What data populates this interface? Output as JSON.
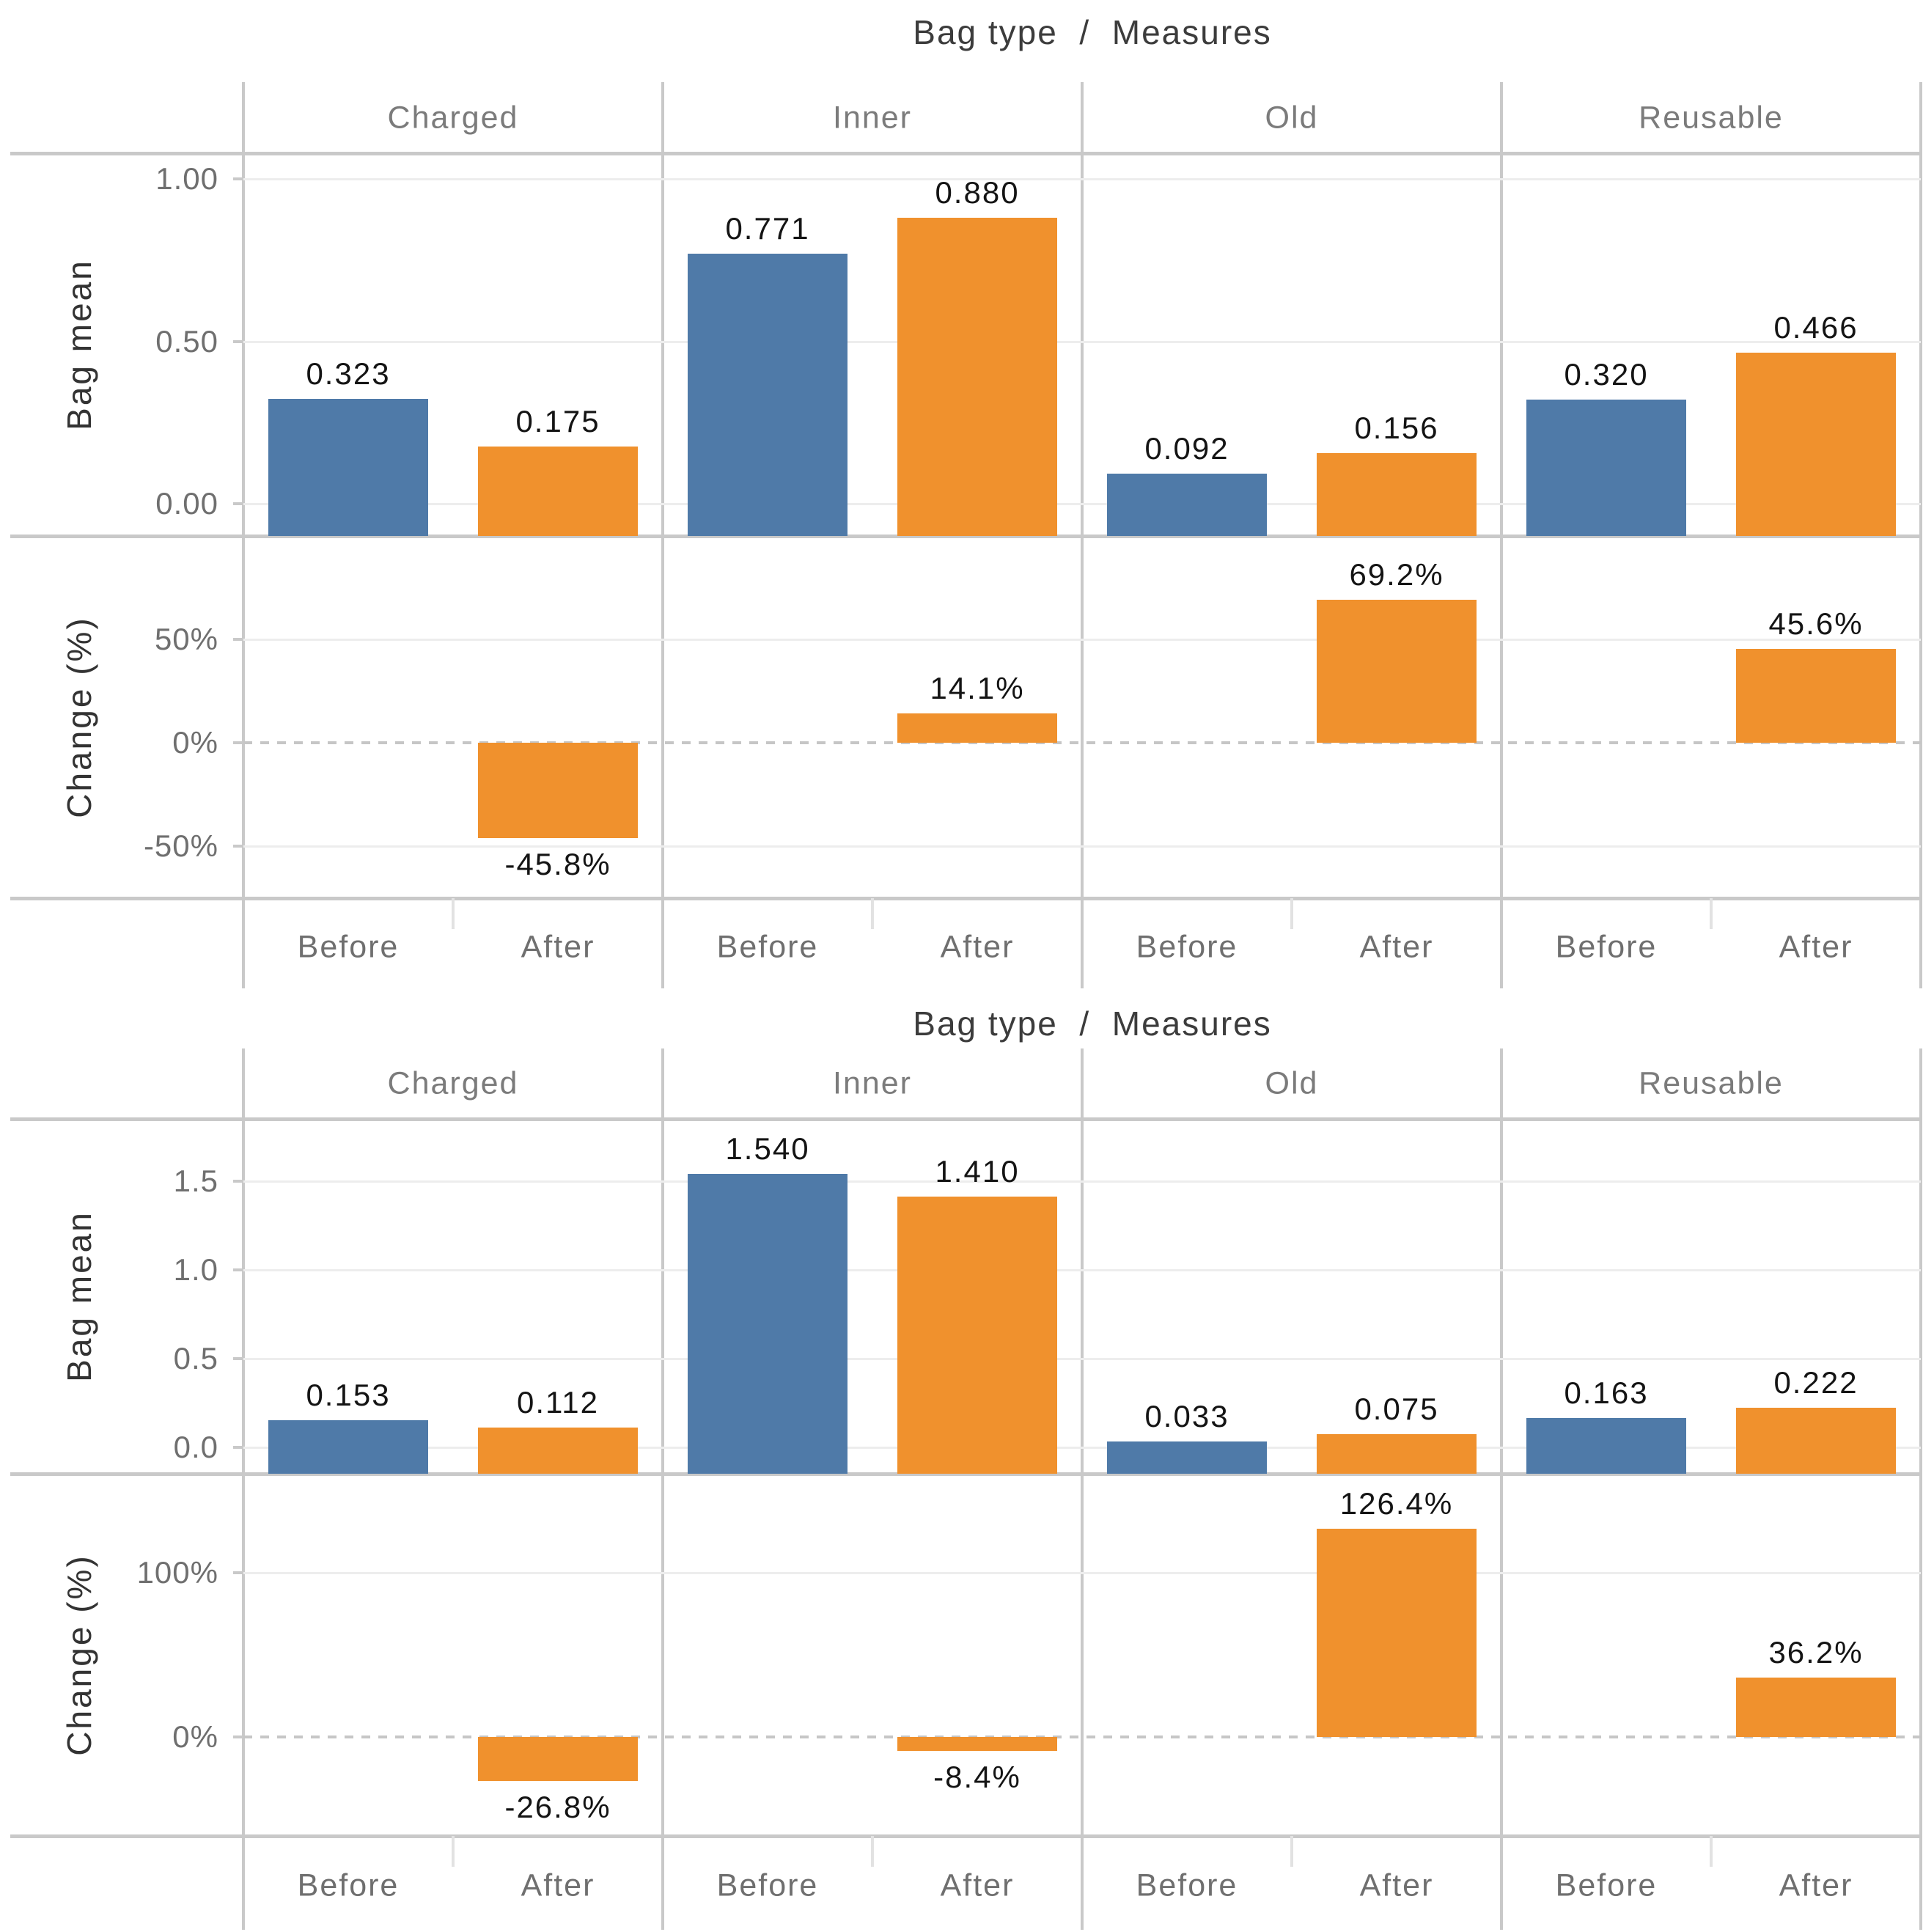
{
  "page": {
    "background": "#ffffff"
  },
  "colors": {
    "before_bar": "#4f7aa8",
    "after_bar": "#f0912d"
  },
  "chart_data": [
    {
      "type": "bar",
      "title": "Bag type  /  Measures",
      "facets": [
        "Charged",
        "Inner",
        "Old",
        "Reusable"
      ],
      "categories": [
        "Before",
        "After"
      ],
      "rows": [
        {
          "ylabel": "Bag mean",
          "ylim": [
            -0.1,
            1.08
          ],
          "bar_base": "bottom",
          "zero_dashed": false,
          "ticks": [
            {
              "value": 1.0,
              "label": "1.00"
            },
            {
              "value": 0.5,
              "label": "0.50"
            },
            {
              "value": 0.0,
              "label": "0.00"
            }
          ],
          "series": [
            {
              "facet": "Charged",
              "values": [
                0.323,
                0.175
              ],
              "labels": [
                "0.323",
                "0.175"
              ]
            },
            {
              "facet": "Inner",
              "values": [
                0.771,
                0.88
              ],
              "labels": [
                "0.771",
                "0.880"
              ]
            },
            {
              "facet": "Old",
              "values": [
                0.092,
                0.156
              ],
              "labels": [
                "0.092",
                "0.156"
              ]
            },
            {
              "facet": "Reusable",
              "values": [
                0.32,
                0.466
              ],
              "labels": [
                "0.320",
                "0.466"
              ]
            }
          ]
        },
        {
          "ylabel": "Change (%)",
          "ylim": [
            -75,
            100
          ],
          "bar_base": "zero",
          "zero_dashed": true,
          "ticks": [
            {
              "value": 50,
              "label": "50%"
            },
            {
              "value": 0,
              "label": "0%"
            },
            {
              "value": -50,
              "label": "-50%"
            }
          ],
          "series": [
            {
              "facet": "Charged",
              "values": [
                null,
                -45.8
              ],
              "labels": [
                null,
                "-45.8%"
              ]
            },
            {
              "facet": "Inner",
              "values": [
                null,
                14.1
              ],
              "labels": [
                null,
                "14.1%"
              ]
            },
            {
              "facet": "Old",
              "values": [
                null,
                69.2
              ],
              "labels": [
                null,
                "69.2%"
              ]
            },
            {
              "facet": "Reusable",
              "values": [
                null,
                45.6
              ],
              "labels": [
                null,
                "45.6%"
              ]
            }
          ]
        }
      ]
    },
    {
      "type": "bar",
      "title": "Bag type  /  Measures",
      "facets": [
        "Charged",
        "Inner",
        "Old",
        "Reusable"
      ],
      "categories": [
        "Before",
        "After"
      ],
      "rows": [
        {
          "ylabel": "Bag mean",
          "ylim": [
            -0.15,
            1.85
          ],
          "bar_base": "bottom",
          "zero_dashed": false,
          "ticks": [
            {
              "value": 1.5,
              "label": "1.5"
            },
            {
              "value": 1.0,
              "label": "1.0"
            },
            {
              "value": 0.5,
              "label": "0.5"
            },
            {
              "value": 0.0,
              "label": "0.0"
            }
          ],
          "series": [
            {
              "facet": "Charged",
              "values": [
                0.153,
                0.112
              ],
              "labels": [
                "0.153",
                "0.112"
              ]
            },
            {
              "facet": "Inner",
              "values": [
                1.54,
                1.41
              ],
              "labels": [
                "1.540",
                "1.410"
              ]
            },
            {
              "facet": "Old",
              "values": [
                0.033,
                0.075
              ],
              "labels": [
                "0.033",
                "0.075"
              ]
            },
            {
              "facet": "Reusable",
              "values": [
                0.163,
                0.222
              ],
              "labels": [
                "0.163",
                "0.222"
              ]
            }
          ]
        },
        {
          "ylabel": "Change (%)",
          "ylim": [
            -60,
            160
          ],
          "bar_base": "zero",
          "zero_dashed": true,
          "ticks": [
            {
              "value": 100,
              "label": "100%"
            },
            {
              "value": 0,
              "label": "0%"
            }
          ],
          "series": [
            {
              "facet": "Charged",
              "values": [
                null,
                -26.8
              ],
              "labels": [
                null,
                "-26.8%"
              ]
            },
            {
              "facet": "Inner",
              "values": [
                null,
                -8.4
              ],
              "labels": [
                null,
                "-8.4%"
              ]
            },
            {
              "facet": "Old",
              "values": [
                null,
                126.4
              ],
              "labels": [
                null,
                "126.4%"
              ]
            },
            {
              "facet": "Reusable",
              "values": [
                null,
                36.2
              ],
              "labels": [
                null,
                "36.2%"
              ]
            }
          ]
        }
      ]
    }
  ]
}
